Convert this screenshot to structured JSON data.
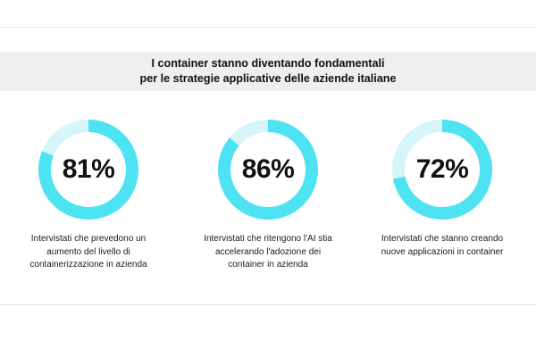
{
  "header": {
    "title_line1": "I container stanno diventando fondamentali",
    "title_line2": "per le strategie applicative delle aziende italiane"
  },
  "colors": {
    "ring": "#4de3f2",
    "track": "#d5f5f9",
    "text": "#111111",
    "band": "#efefef"
  },
  "stats": [
    {
      "label": "81%",
      "caption": [
        "Intervistati che prevedono un",
        "aumento del livello di",
        "containerizzazione in azienda"
      ]
    },
    {
      "label": "86%",
      "caption": [
        "Intervistati che ritengono l'AI stia",
        "accelerando l'adozione dei",
        "container in azienda"
      ]
    },
    {
      "label": "72%",
      "caption": [
        "Intervistati che stanno creando",
        "nuove applicazioni in container"
      ]
    }
  ],
  "chart_data": {
    "type": "pie",
    "subtype": "donut",
    "title": "I container stanno diventando fondamentali per le strategie applicative delle aziende italiane",
    "categories": [
      "Intervistati che prevedono un aumento del livello di containerizzazione in azienda",
      "Intervistati che ritengono l'AI stia accelerando l'adozione dei container in azienda",
      "Intervistati che stanno creando nuove applicazioni in container"
    ],
    "values": [
      81,
      86,
      72
    ],
    "unit": "%",
    "max": 100
  }
}
